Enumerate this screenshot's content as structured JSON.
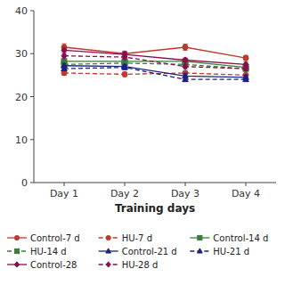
{
  "chart_data": {
    "type": "line",
    "xlabel": "Training days",
    "categories": [
      "Day 1",
      "Day 2",
      "Day 3",
      "Day 4"
    ],
    "ylim": [
      0,
      40
    ],
    "yticks": [
      0,
      10,
      20,
      30,
      40
    ],
    "grid": false,
    "legend": "bottom",
    "series": [
      {
        "name": "Control-7 d",
        "color": "#c0392b",
        "line_style": "solid",
        "marker": "circle",
        "values": [
          31.5,
          30.0,
          31.5,
          29.0
        ],
        "errors": [
          0.8,
          0.6,
          0.7,
          0.6
        ]
      },
      {
        "name": "HU-7 d",
        "color": "#c0392b",
        "line_style": "dashed",
        "marker": "circle",
        "values": [
          25.5,
          25.2,
          25.5,
          25.0
        ],
        "errors": [
          0.5,
          0.5,
          0.5,
          0.5
        ]
      },
      {
        "name": "Control-14 d",
        "color": "#3a7d3a",
        "line_style": "solid",
        "marker": "square",
        "values": [
          28.2,
          28.2,
          28.2,
          26.8
        ],
        "errors": [
          0.5,
          0.5,
          0.5,
          0.5
        ]
      },
      {
        "name": "HU-14 d",
        "color": "#3a7d3a",
        "line_style": "dashed",
        "marker": "square",
        "values": [
          27.5,
          27.8,
          27.5,
          26.5
        ],
        "errors": [
          0.5,
          0.5,
          0.5,
          0.5
        ]
      },
      {
        "name": "Control-21 d",
        "color": "#1a237e",
        "line_style": "solid",
        "marker": "triangle",
        "values": [
          27.2,
          27.0,
          24.8,
          24.5
        ],
        "errors": [
          0.5,
          0.5,
          0.6,
          0.5
        ]
      },
      {
        "name": "HU-21 d",
        "color": "#1a237e",
        "line_style": "dashed",
        "marker": "triangle",
        "values": [
          26.5,
          26.8,
          24.0,
          24.0
        ],
        "errors": [
          0.5,
          0.5,
          0.5,
          0.5
        ]
      },
      {
        "name": "Control-28",
        "color": "#880e4f",
        "line_style": "solid",
        "marker": "diamond",
        "values": [
          30.8,
          29.8,
          28.5,
          27.5
        ],
        "errors": [
          0.5,
          0.5,
          0.5,
          0.5
        ]
      },
      {
        "name": "HU-28 d",
        "color": "#880e4f",
        "line_style": "dashed",
        "marker": "diamond",
        "values": [
          29.5,
          29.2,
          27.0,
          26.5
        ],
        "errors": [
          0.5,
          0.5,
          0.5,
          0.5
        ]
      }
    ]
  }
}
